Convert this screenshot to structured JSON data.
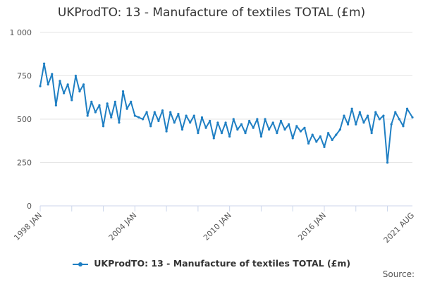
{
  "title": "UKProdTO: 13 - Manufacture of textiles TOTAL (£m)",
  "credit": "Source:",
  "chart_data": {
    "type": "line",
    "title": "UKProdTO: 13 - Manufacture of textiles TOTAL (£m)",
    "xlabel": "",
    "ylabel": "",
    "ylim": [
      0,
      1000
    ],
    "xlim": [
      "1998-01",
      "2021-08"
    ],
    "yticks": [
      0,
      250,
      500,
      750,
      1000
    ],
    "ytick_labels": [
      "0",
      "250",
      "500",
      "750",
      "1 000"
    ],
    "xticks": [
      "1998-01",
      "2004-01",
      "2010-01",
      "2016-01",
      "2021-08"
    ],
    "xtick_labels": [
      "1998 JAN",
      "2004 JAN",
      "2010 JAN",
      "2016 JAN",
      "2021 AUG"
    ],
    "grid": true,
    "legend_position": "bottom",
    "color": "#1f7fc3",
    "series": [
      {
        "name": "UKProdTO: 13 - Manufacture of textiles TOTAL (£m)",
        "x": [
          "1998-01",
          "1998-04",
          "1998-07",
          "1998-10",
          "1999-01",
          "1999-04",
          "1999-07",
          "1999-10",
          "2000-01",
          "2000-04",
          "2000-07",
          "2000-10",
          "2001-01",
          "2001-04",
          "2001-07",
          "2001-10",
          "2002-01",
          "2002-04",
          "2002-07",
          "2002-10",
          "2003-01",
          "2003-04",
          "2003-07",
          "2003-10",
          "2004-01",
          "2004-04",
          "2004-07",
          "2004-10",
          "2005-01",
          "2005-04",
          "2005-07",
          "2005-10",
          "2006-01",
          "2006-04",
          "2006-07",
          "2006-10",
          "2007-01",
          "2007-04",
          "2007-07",
          "2007-10",
          "2008-01",
          "2008-04",
          "2008-07",
          "2008-10",
          "2009-01",
          "2009-04",
          "2009-07",
          "2009-10",
          "2010-01",
          "2010-04",
          "2010-07",
          "2010-10",
          "2011-01",
          "2011-04",
          "2011-07",
          "2011-10",
          "2012-01",
          "2012-04",
          "2012-07",
          "2012-10",
          "2013-01",
          "2013-04",
          "2013-07",
          "2013-10",
          "2014-01",
          "2014-04",
          "2014-07",
          "2014-10",
          "2015-01",
          "2015-04",
          "2015-07",
          "2015-10",
          "2016-01",
          "2016-04",
          "2016-07",
          "2016-10",
          "2017-01",
          "2017-04",
          "2017-07",
          "2017-10",
          "2018-01",
          "2018-04",
          "2018-07",
          "2018-10",
          "2019-01",
          "2019-04",
          "2019-07",
          "2019-10",
          "2020-01",
          "2020-04",
          "2020-07",
          "2020-10",
          "2021-01",
          "2021-04",
          "2021-08"
        ],
        "values": [
          690,
          820,
          700,
          760,
          580,
          720,
          650,
          700,
          610,
          750,
          660,
          700,
          520,
          600,
          540,
          580,
          460,
          590,
          510,
          600,
          480,
          660,
          560,
          600,
          520,
          510,
          500,
          540,
          460,
          540,
          490,
          550,
          430,
          540,
          480,
          530,
          440,
          520,
          480,
          520,
          420,
          510,
          450,
          490,
          390,
          480,
          420,
          480,
          400,
          500,
          440,
          470,
          420,
          490,
          450,
          500,
          400,
          500,
          440,
          480,
          420,
          490,
          440,
          470,
          390,
          460,
          430,
          450,
          360,
          410,
          370,
          400,
          340,
          420,
          380,
          410,
          440,
          520,
          470,
          560,
          470,
          540,
          480,
          520,
          420,
          540,
          500,
          520,
          250,
          470,
          540,
          500,
          460,
          560,
          510
        ]
      }
    ]
  }
}
